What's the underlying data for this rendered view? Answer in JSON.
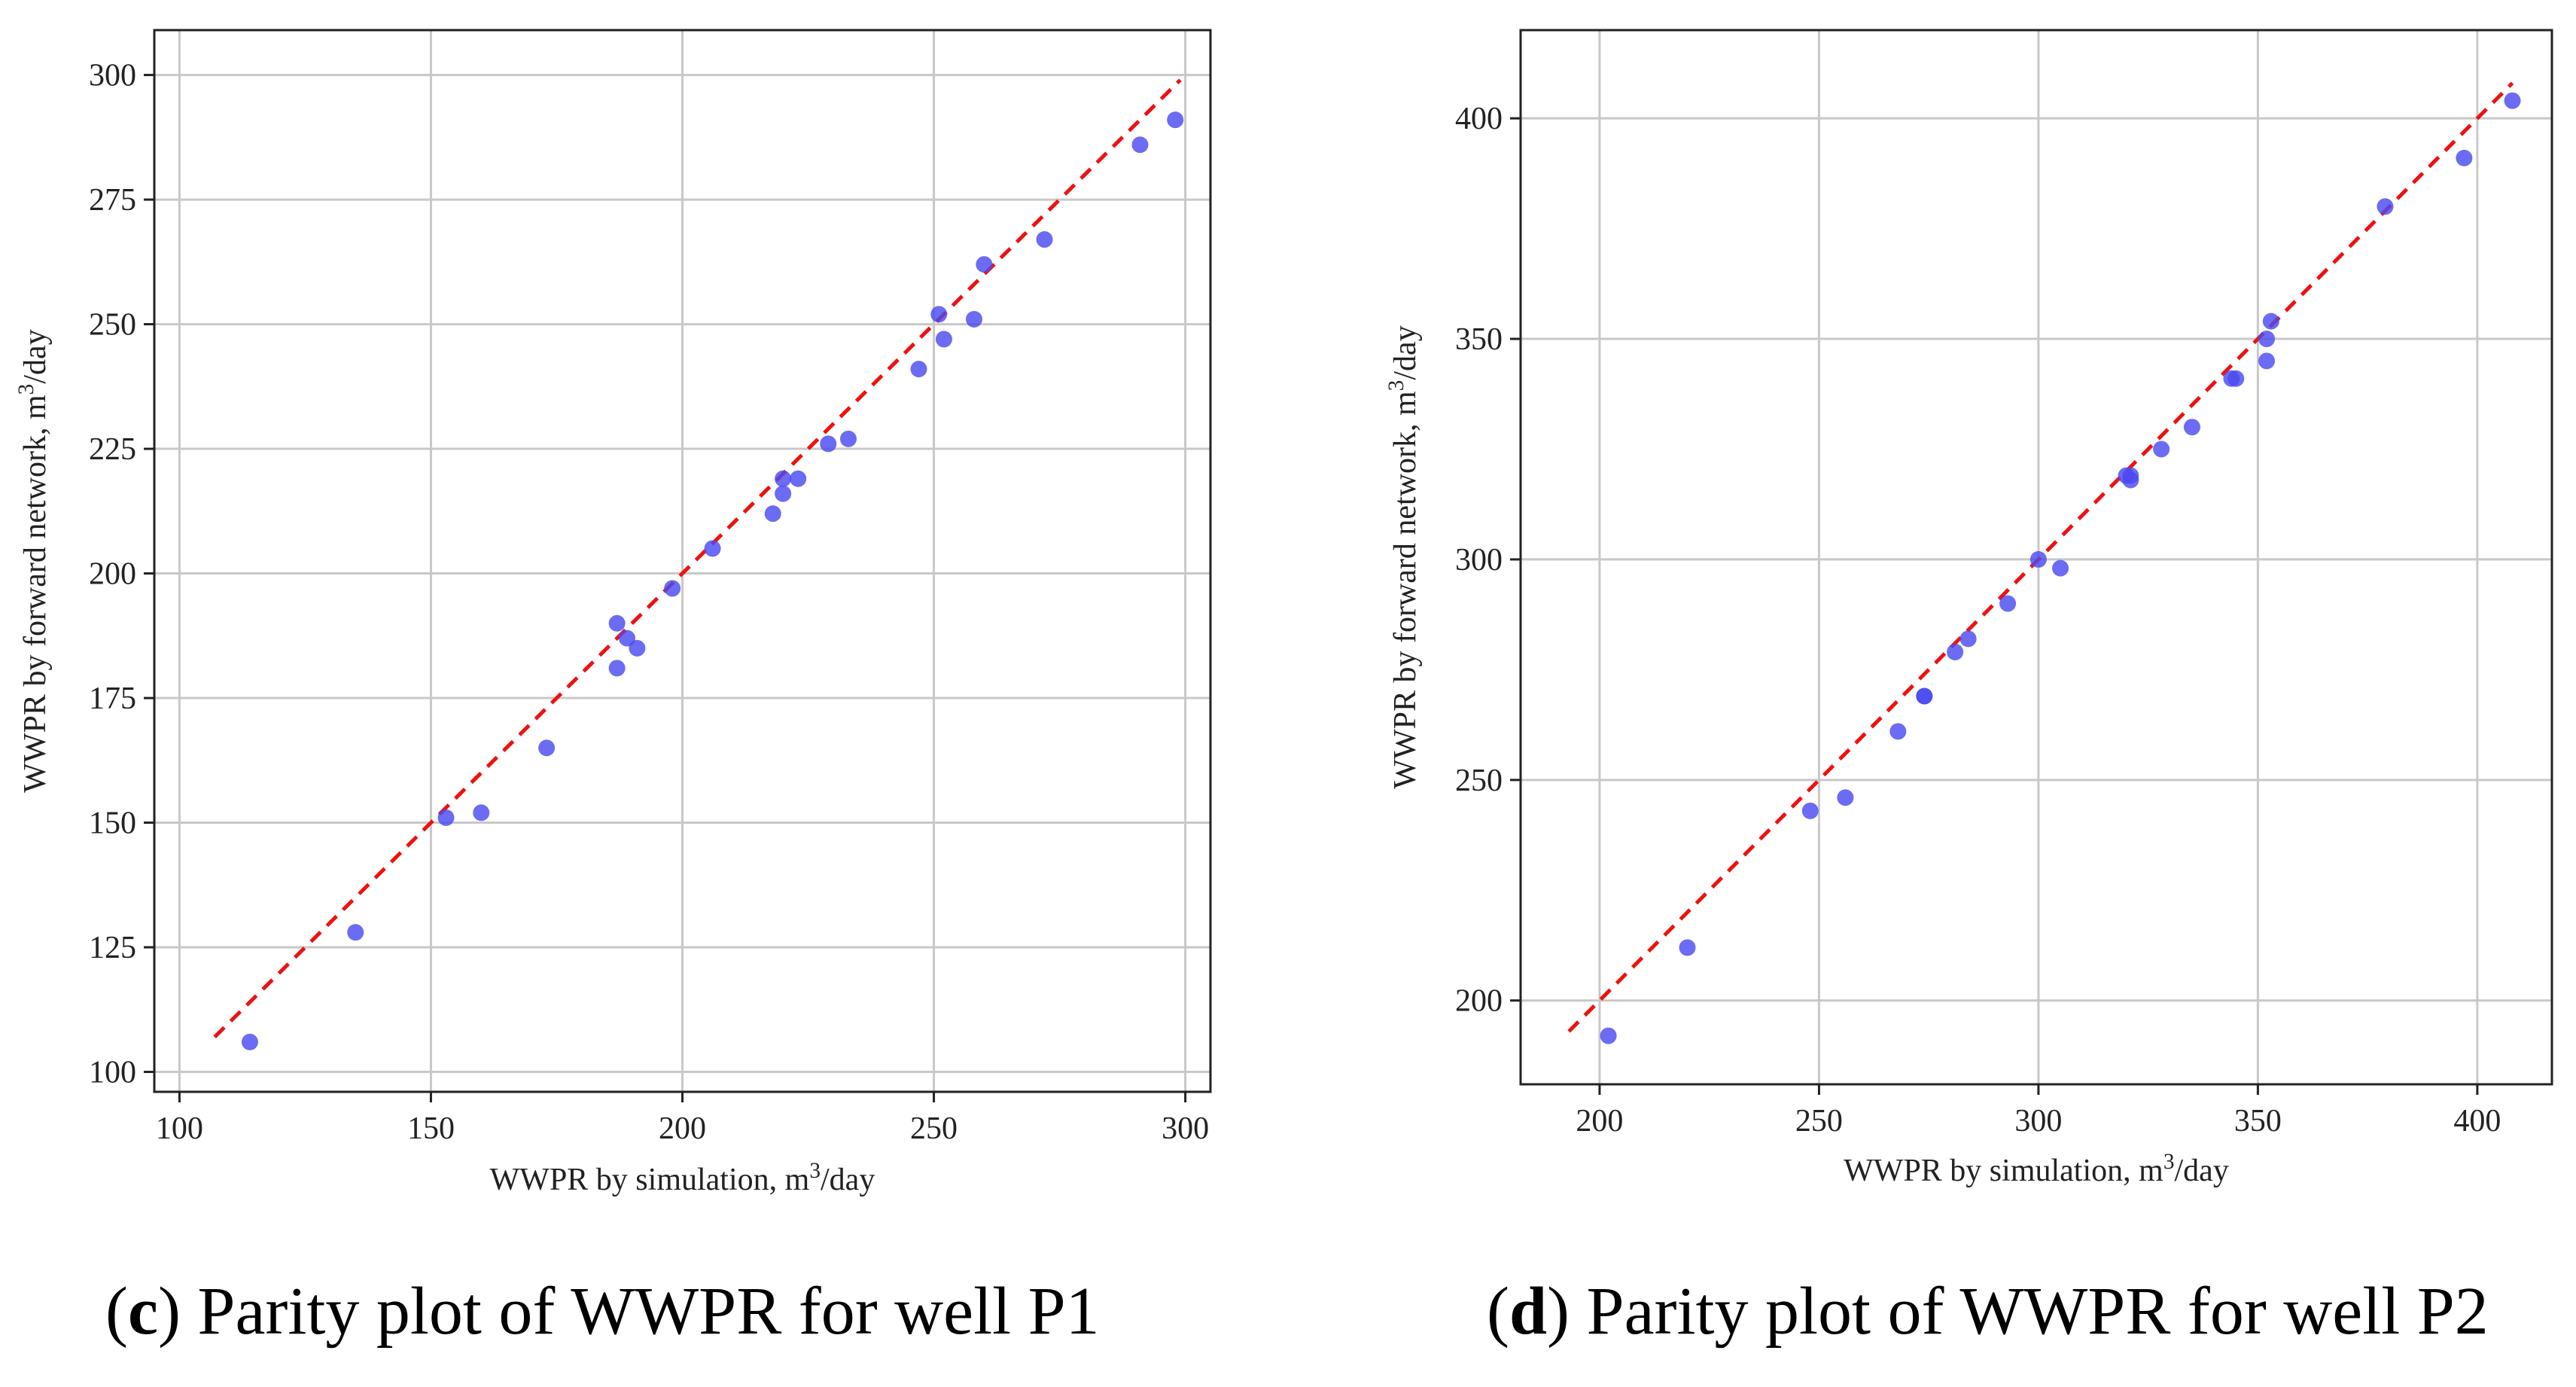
{
  "colors": {
    "point": "#4a4af0",
    "line": "#ee1111",
    "grid": "#c8c8c8",
    "axis": "#222222"
  },
  "chart_data": [
    {
      "type": "scatter",
      "xlabel": "WWPR by simulation, m3/day",
      "ylabel": "WWPR by forward network, m3/day",
      "xlim": [
        95,
        305
      ],
      "ylim": [
        96,
        309
      ],
      "xticks": [
        100,
        150,
        200,
        250,
        300
      ],
      "yticks": [
        100,
        125,
        150,
        175,
        200,
        225,
        250,
        275,
        300
      ],
      "grid": true,
      "reference_line": {
        "from": [
          107,
          107
        ],
        "to": [
          299,
          299
        ]
      },
      "points": [
        [
          114,
          106
        ],
        [
          135,
          128
        ],
        [
          153,
          151
        ],
        [
          160,
          152
        ],
        [
          173,
          165
        ],
        [
          187,
          181
        ],
        [
          187,
          190
        ],
        [
          189,
          187
        ],
        [
          191,
          185
        ],
        [
          198,
          197
        ],
        [
          206,
          205
        ],
        [
          218,
          212
        ],
        [
          220,
          216
        ],
        [
          220,
          219
        ],
        [
          223,
          219
        ],
        [
          229,
          226
        ],
        [
          233,
          227
        ],
        [
          247,
          241
        ],
        [
          251,
          252
        ],
        [
          252,
          247
        ],
        [
          258,
          251
        ],
        [
          260,
          262
        ],
        [
          272,
          267
        ],
        [
          291,
          286
        ],
        [
          298,
          291
        ]
      ],
      "caption": {
        "letter": "c",
        "text": "Parity plot of WWPR for well P1"
      }
    },
    {
      "type": "scatter",
      "xlabel": "WWPR by simulation, m3/day",
      "ylabel": "WWPR by forward network, m3/day",
      "xlim": [
        182,
        417
      ],
      "ylim": [
        181,
        420
      ],
      "xticks": [
        200,
        250,
        300,
        350,
        400
      ],
      "yticks": [
        200,
        250,
        300,
        350,
        400
      ],
      "grid": true,
      "reference_line": {
        "from": [
          193,
          193
        ],
        "to": [
          408,
          408
        ]
      },
      "points": [
        [
          202,
          192
        ],
        [
          220,
          212
        ],
        [
          248,
          243
        ],
        [
          256,
          246
        ],
        [
          268,
          261
        ],
        [
          274,
          269
        ],
        [
          274,
          269
        ],
        [
          281,
          279
        ],
        [
          284,
          282
        ],
        [
          293,
          290
        ],
        [
          300,
          300
        ],
        [
          305,
          298
        ],
        [
          320,
          319
        ],
        [
          321,
          319
        ],
        [
          321,
          318
        ],
        [
          328,
          325
        ],
        [
          335,
          330
        ],
        [
          344,
          341
        ],
        [
          345,
          341
        ],
        [
          352,
          345
        ],
        [
          352,
          350
        ],
        [
          353,
          354
        ],
        [
          379,
          380
        ],
        [
          397,
          391
        ],
        [
          408,
          404
        ]
      ],
      "caption": {
        "letter": "d",
        "text": "Parity plot of WWPR for well P2"
      }
    }
  ]
}
